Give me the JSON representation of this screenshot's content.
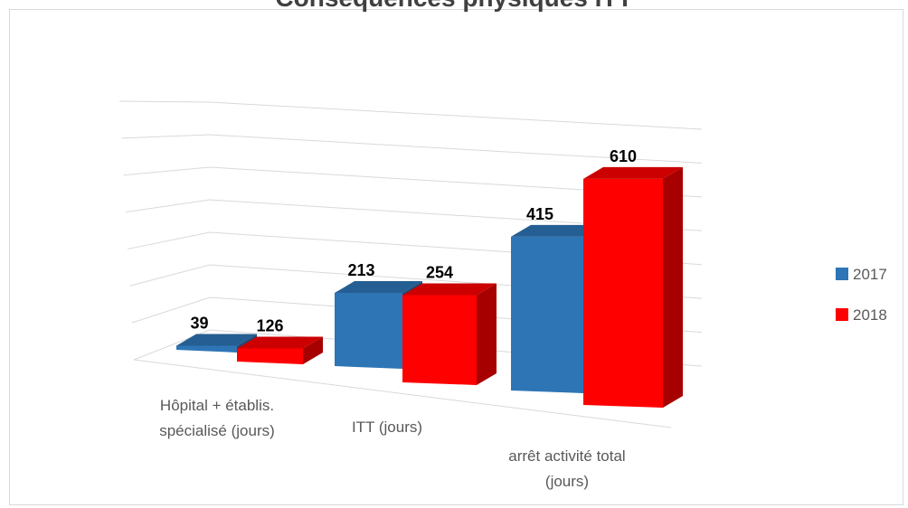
{
  "chart_data": {
    "type": "bar",
    "title": "Conséquences physiques ITT",
    "categories": [
      [
        "Hôpital  + établis.",
        "spécialisé (jours)"
      ],
      [
        "ITT (jours)"
      ],
      [
        "arrêt activité total",
        "(jours)"
      ]
    ],
    "series": [
      {
        "name": "2017",
        "values": [
          39,
          213,
          415
        ],
        "color": "#2E75B6"
      },
      {
        "name": "2018",
        "values": [
          126,
          254,
          610
        ],
        "color": "#FF0000"
      }
    ],
    "ylim": [
      0,
      700
    ],
    "grid": true,
    "legend": "right",
    "style": "3d-column"
  }
}
